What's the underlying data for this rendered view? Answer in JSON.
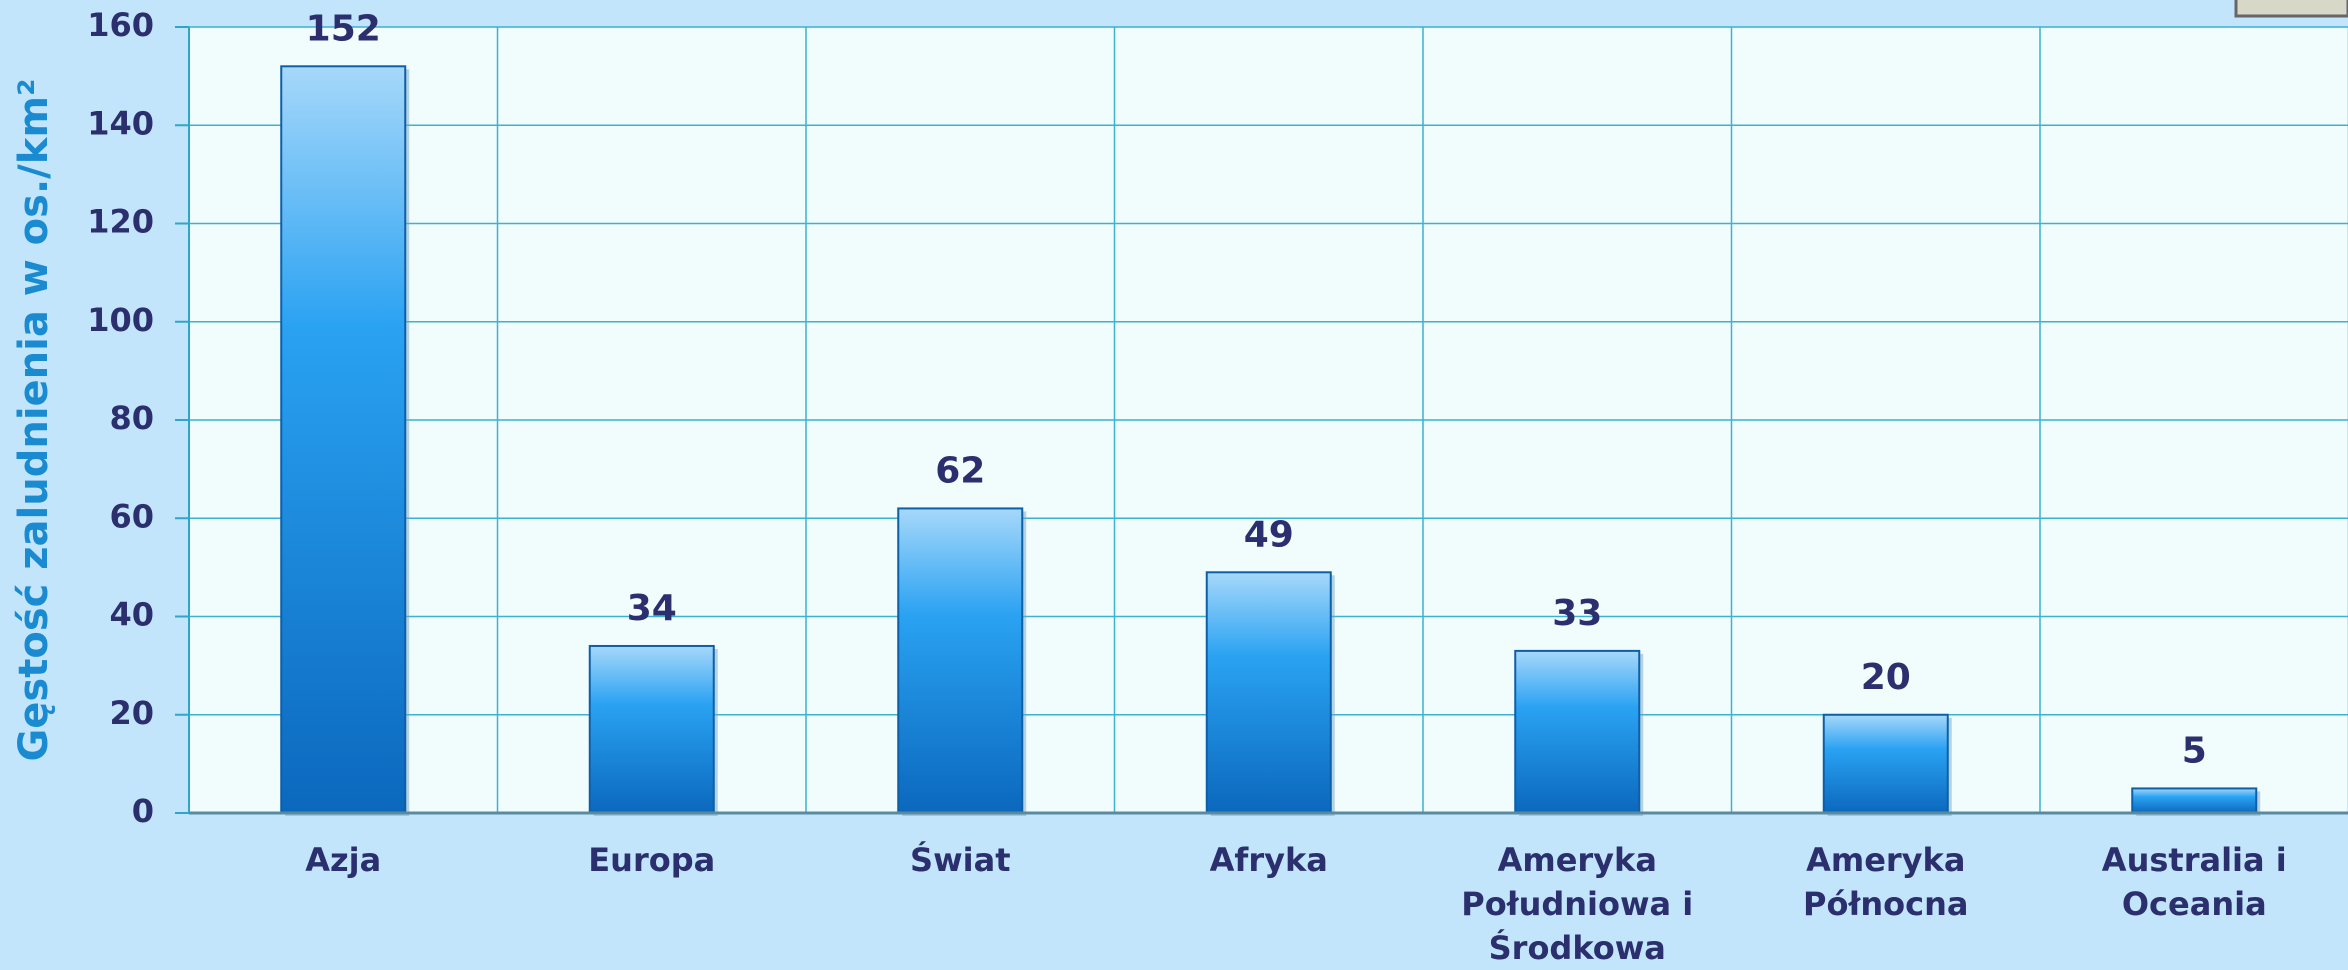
{
  "chart_data": {
    "type": "bar",
    "y_label": "Gęstość zaludnienia w os./km²",
    "categories": [
      "Azja",
      "Europa",
      "Świat",
      "Afryka",
      "Ameryka Południowa i Środkowa",
      "Ameryka Północna",
      "Australia i Oceania"
    ],
    "values": [
      152,
      34,
      62,
      49,
      33,
      20,
      5
    ],
    "color": "#1f9bec",
    "ylim": [
      0,
      160
    ],
    "yticks": [
      0,
      20,
      40,
      60,
      80,
      100,
      120,
      140,
      160
    ],
    "grid": true
  }
}
